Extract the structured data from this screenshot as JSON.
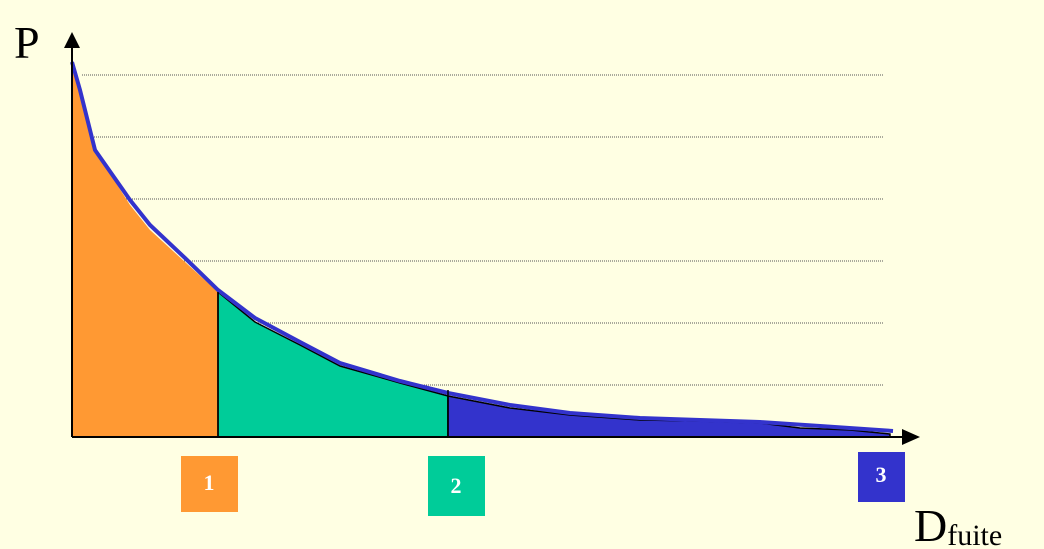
{
  "axes": {
    "y_label": "P",
    "x_label": "D",
    "x_label_subscript": "fuite"
  },
  "zones": [
    {
      "label": "1"
    },
    {
      "label": "2"
    },
    {
      "label": "3"
    }
  ]
}
